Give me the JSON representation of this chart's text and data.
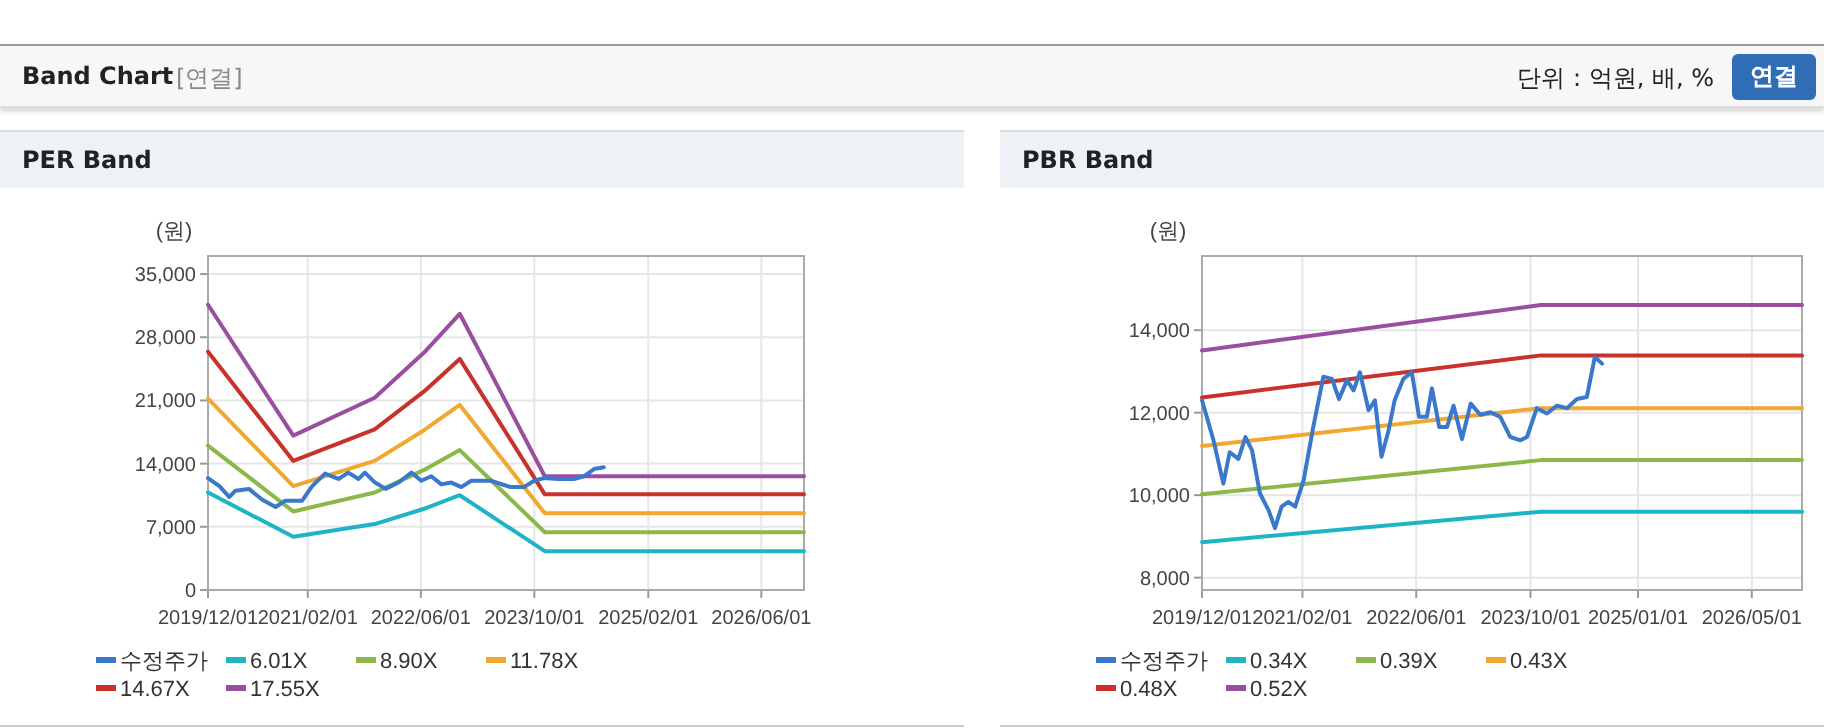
{
  "chart_data": [
    {
      "type": "line",
      "title": "PER Band",
      "ylabel": "(원)",
      "annotations": [
        "Band Chart",
        "[연결]",
        "단위 : 억원, 배, %",
        "연결"
      ],
      "xlim": [
        "2019-12-01",
        "2026-12-01"
      ],
      "xticks": [
        {
          "value": "2019-12-01",
          "label": "2019/12/01"
        },
        {
          "value": "2021-02-01",
          "label": "2021/02/01"
        },
        {
          "value": "2022-06-01",
          "label": "2022/06/01"
        },
        {
          "value": "2023-10-01",
          "label": "2023/10/01"
        },
        {
          "value": "2025-02-01",
          "label": "2025/02/01"
        },
        {
          "value": "2026-06-01",
          "label": "2026/06/01"
        }
      ],
      "ylim": [
        0,
        37000
      ],
      "yticks": [
        0,
        {
          "value": 7000,
          "label": "7,000"
        },
        {
          "value": 14000,
          "label": "14,000"
        },
        {
          "value": 21000,
          "label": "21,000"
        },
        {
          "value": 28000,
          "label": "28,000"
        },
        {
          "value": 35000,
          "label": "35,000"
        }
      ],
      "grid": true,
      "legend": "bottom",
      "marker": "none",
      "line_style": "solid",
      "series": [
        {
          "name": "수정주가",
          "color": "#3a78cc",
          "x": [
            "2019-12-01",
            "2020-01-19",
            "2020-03-01",
            "2020-03-28",
            "2020-05-25",
            "2020-07-21",
            "2020-09-16",
            "2020-10-28",
            "2021-01-08",
            "2021-02-20",
            "2021-04-16",
            "2021-06-13",
            "2021-07-25",
            "2021-09-07",
            "2021-10-04",
            "2021-11-17",
            "2022-01-01",
            "2022-02-25",
            "2022-04-22",
            "2022-06-03",
            "2022-07-16",
            "2022-08-28",
            "2022-10-10",
            "2022-11-22",
            "2023-01-03",
            "2023-03-28",
            "2023-06-22",
            "2023-08-18",
            "2023-09-30",
            "2023-11-12",
            "2024-01-09",
            "2024-03-19",
            "2024-05-01",
            "2024-06-13",
            "2024-07-25"
          ],
          "values": [
            12400,
            11500,
            10300,
            11000,
            11200,
            10000,
            9200,
            9900,
            9900,
            11500,
            12900,
            12300,
            13000,
            12300,
            13000,
            11900,
            11200,
            11900,
            13000,
            12100,
            12600,
            11700,
            11900,
            11400,
            12100,
            12100,
            11400,
            11400,
            12100,
            12400,
            12300,
            12300,
            12600,
            13400,
            13600
          ]
        },
        {
          "name": "6.01X",
          "color": "#1eb4c6",
          "x": [
            "2019-12-01",
            "2020-12-01",
            "2021-11-15",
            "2022-06-15",
            "2022-11-15",
            "2023-11-15",
            "2026-12-01"
          ],
          "values": [
            10800,
            5900,
            7300,
            9000,
            10500,
            4300,
            4300
          ]
        },
        {
          "name": "8.90X",
          "color": "#8cb84a",
          "x": [
            "2019-12-01",
            "2020-12-01",
            "2021-11-15",
            "2022-06-15",
            "2022-11-15",
            "2023-11-15",
            "2026-12-01"
          ],
          "values": [
            16000,
            8700,
            10800,
            13300,
            15500,
            6400,
            6400
          ]
        },
        {
          "name": "11.78X",
          "color": "#f0a830",
          "x": [
            "2019-12-01",
            "2020-12-01",
            "2021-11-15",
            "2022-06-15",
            "2022-11-15",
            "2023-11-15",
            "2026-12-01"
          ],
          "values": [
            21200,
            11500,
            14300,
            17700,
            20500,
            8500,
            8500
          ]
        },
        {
          "name": "14.67X",
          "color": "#c8322a",
          "x": [
            "2019-12-01",
            "2020-12-01",
            "2021-11-15",
            "2022-06-15",
            "2022-11-15",
            "2023-11-15",
            "2026-12-01"
          ],
          "values": [
            26400,
            14300,
            17800,
            22000,
            25600,
            10600,
            10600
          ]
        },
        {
          "name": "17.55X",
          "color": "#9a4ea0",
          "x": [
            "2019-12-01",
            "2020-12-01",
            "2021-11-15",
            "2022-06-15",
            "2022-11-15",
            "2023-11-15",
            "2026-12-01"
          ],
          "values": [
            31600,
            17100,
            21300,
            26300,
            30600,
            12600,
            12600
          ]
        }
      ]
    },
    {
      "type": "line",
      "title": "PBR Band",
      "ylabel": "(원)",
      "xlim": [
        "2019-12-01",
        "2026-12-01"
      ],
      "xticks": [
        {
          "value": "2019-12-01",
          "label": "2019/12/01"
        },
        {
          "value": "2021-02-01",
          "label": "2021/02/01"
        },
        {
          "value": "2022-06-01",
          "label": "2022/06/01"
        },
        {
          "value": "2023-10-01",
          "label": "2023/10/01"
        },
        {
          "value": "2025-01-01",
          "label": "2025/01/01"
        },
        {
          "value": "2026-05-01",
          "label": "2026/05/01"
        }
      ],
      "ylim": [
        7700,
        15800
      ],
      "yticks": [
        {
          "value": 8000,
          "label": "8,000"
        },
        {
          "value": 10000,
          "label": "10,000"
        },
        {
          "value": 12000,
          "label": "12,000"
        },
        {
          "value": 14000,
          "label": "14,000"
        }
      ],
      "grid": true,
      "legend": "bottom",
      "marker": "none",
      "line_style": "solid",
      "series": [
        {
          "name": "수정주가",
          "color": "#3a78cc",
          "x": [
            "2019-12-01",
            "2020-01-19",
            "2020-03-01",
            "2020-03-28",
            "2020-05-04",
            "2020-06-03",
            "2020-07-01",
            "2020-08-04",
            "2020-09-10",
            "2020-10-07",
            "2020-11-04",
            "2020-12-03",
            "2021-01-01",
            "2021-02-06",
            "2021-03-19",
            "2021-05-01",
            "2021-06-07",
            "2021-07-07",
            "2021-08-10",
            "2021-09-07",
            "2021-10-04",
            "2021-11-10",
            "2021-12-07",
            "2022-01-04",
            "2022-02-03",
            "2022-03-01",
            "2022-04-07",
            "2022-05-13",
            "2022-06-13",
            "2022-07-16",
            "2022-08-07",
            "2022-09-07",
            "2022-10-10",
            "2022-11-07",
            "2022-12-13",
            "2023-01-19",
            "2023-03-01",
            "2023-04-13",
            "2023-05-25",
            "2023-07-07",
            "2023-08-19",
            "2023-09-16",
            "2023-10-28",
            "2023-12-10",
            "2024-01-22",
            "2024-03-04",
            "2024-04-16",
            "2024-05-28",
            "2024-07-01",
            "2024-08-01"
          ],
          "values": [
            12300,
            11330,
            10280,
            11040,
            10880,
            11410,
            11090,
            10040,
            9630,
            9200,
            9720,
            9840,
            9720,
            10360,
            11650,
            12870,
            12820,
            12330,
            12790,
            12540,
            12980,
            12060,
            12300,
            10930,
            11570,
            12300,
            12820,
            12980,
            11900,
            11900,
            12590,
            11650,
            11650,
            12170,
            11360,
            12220,
            11950,
            12010,
            11900,
            11410,
            11330,
            11410,
            12110,
            11980,
            12170,
            12110,
            12330,
            12380,
            13350,
            13190
          ]
        },
        {
          "name": "0.34X",
          "color": "#1eb4c6",
          "x": [
            "2019-12-01",
            "2023-11-15",
            "2026-12-01"
          ],
          "values": [
            8860,
            9600,
            9600
          ]
        },
        {
          "name": "0.39X",
          "color": "#8cb84a",
          "x": [
            "2019-12-01",
            "2023-11-15",
            "2026-12-01"
          ],
          "values": [
            10020,
            10850,
            10850
          ]
        },
        {
          "name": "0.43X",
          "color": "#f0a830",
          "x": [
            "2019-12-01",
            "2023-11-15",
            "2026-12-01"
          ],
          "values": [
            11190,
            12110,
            12110
          ]
        },
        {
          "name": "0.48X",
          "color": "#c8322a",
          "x": [
            "2019-12-01",
            "2023-11-15",
            "2026-12-01"
          ],
          "values": [
            12370,
            13390,
            13390
          ]
        },
        {
          "name": "0.52X",
          "color": "#9a4ea0",
          "x": [
            "2019-12-01",
            "2023-11-15",
            "2026-12-01"
          ],
          "values": [
            13510,
            14610,
            14610
          ]
        }
      ]
    }
  ]
}
